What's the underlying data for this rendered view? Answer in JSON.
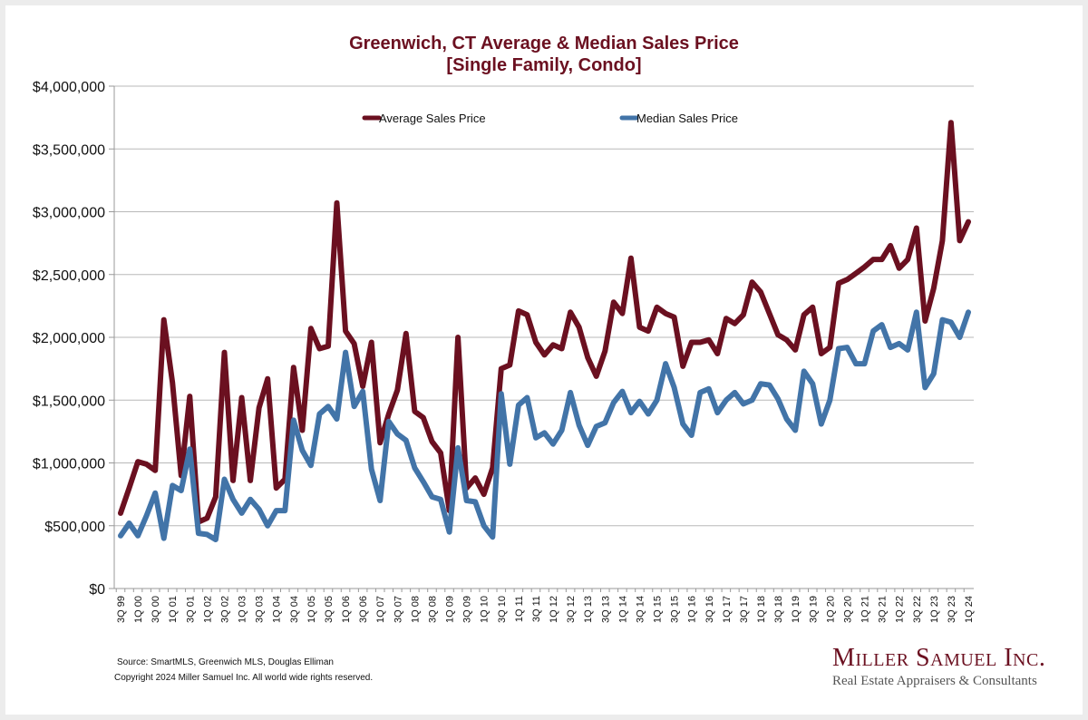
{
  "chart_data": {
    "type": "line",
    "title": "Greenwich, CT Average & Median Sales Price",
    "subtitle": "[Single Family, Condo]",
    "xlabel": "",
    "ylabel": "",
    "ylim": [
      0,
      4000000
    ],
    "yticks": [
      0,
      500000,
      1000000,
      1500000,
      2000000,
      2500000,
      3000000,
      3500000,
      4000000
    ],
    "ytick_labels": [
      "$0",
      "$500,000",
      "$1,000,000",
      "$1,500,000",
      "$2,000,000",
      "$2,500,000",
      "$3,000,000",
      "$3,500,000",
      "$4,000,000"
    ],
    "grid": true,
    "legend_position": "top",
    "x": [
      "3Q 99",
      "4Q 99",
      "1Q 00",
      "2Q 00",
      "3Q 00",
      "4Q 00",
      "1Q 01",
      "2Q 01",
      "3Q 01",
      "4Q 01",
      "1Q 02",
      "2Q 02",
      "3Q 02",
      "4Q 02",
      "1Q 03",
      "2Q 03",
      "3Q 03",
      "4Q 03",
      "1Q 04",
      "2Q 04",
      "3Q 04",
      "4Q 04",
      "1Q 05",
      "2Q 05",
      "3Q 05",
      "4Q 05",
      "1Q 06",
      "2Q 06",
      "3Q 06",
      "4Q 06",
      "1Q 07",
      "2Q 07",
      "3Q 07",
      "4Q 07",
      "1Q 08",
      "2Q 08",
      "3Q 08",
      "4Q 08",
      "1Q 09",
      "2Q 09",
      "3Q 09",
      "4Q 09",
      "1Q 10",
      "2Q 10",
      "3Q 10",
      "4Q 10",
      "1Q 11",
      "2Q 11",
      "3Q 11",
      "4Q 11",
      "1Q 12",
      "2Q 12",
      "3Q 12",
      "4Q 12",
      "1Q 13",
      "2Q 13",
      "3Q 13",
      "4Q 13",
      "1Q 14",
      "2Q 14",
      "3Q 14",
      "4Q 14",
      "1Q 15",
      "2Q 15",
      "3Q 15",
      "4Q 15",
      "1Q 16",
      "2Q 16",
      "3Q 16",
      "4Q 16",
      "1Q 17",
      "2Q 17",
      "3Q 17",
      "4Q 17",
      "1Q 18",
      "2Q 18",
      "3Q 18",
      "4Q 18",
      "1Q 19",
      "2Q 19",
      "3Q 19",
      "4Q 19",
      "1Q 20",
      "2Q 20",
      "3Q 20",
      "4Q 20",
      "1Q 21",
      "2Q 21",
      "3Q 21",
      "4Q 21",
      "1Q 22",
      "2Q 22",
      "3Q 22",
      "4Q 22",
      "1Q 23",
      "2Q 23",
      "3Q 23",
      "4Q 23",
      "1Q 24"
    ],
    "x_tick_every": 2,
    "series": [
      {
        "name": "Average Sales Price",
        "color": "#6b1020",
        "values": [
          600000,
          800000,
          1010000,
          990000,
          940000,
          2140000,
          1640000,
          900000,
          1530000,
          530000,
          560000,
          730000,
          1880000,
          860000,
          1520000,
          860000,
          1440000,
          1670000,
          800000,
          870000,
          1760000,
          1260000,
          2070000,
          1910000,
          1930000,
          3070000,
          2050000,
          1950000,
          1610000,
          1960000,
          1160000,
          1390000,
          1580000,
          2030000,
          1410000,
          1360000,
          1170000,
          1080000,
          620000,
          2000000,
          800000,
          880000,
          750000,
          960000,
          1750000,
          1780000,
          2210000,
          2180000,
          1960000,
          1860000,
          1940000,
          1910000,
          2200000,
          2080000,
          1840000,
          1690000,
          1890000,
          2280000,
          2190000,
          2630000,
          2080000,
          2050000,
          2240000,
          2190000,
          2160000,
          1770000,
          1960000,
          1960000,
          1980000,
          1870000,
          2150000,
          2110000,
          2180000,
          2440000,
          2360000,
          2190000,
          2020000,
          1980000,
          1900000,
          2180000,
          2240000,
          1870000,
          1920000,
          2430000,
          2460000,
          2510000,
          2560000,
          2620000,
          2620000,
          2730000,
          2550000,
          2620000,
          2870000,
          2130000,
          2390000,
          2770000,
          3710000,
          2770000,
          2920000
        ]
      },
      {
        "name": "Median Sales Price",
        "color": "#4274a8",
        "values": [
          420000,
          520000,
          420000,
          580000,
          760000,
          400000,
          820000,
          780000,
          1110000,
          440000,
          430000,
          390000,
          870000,
          710000,
          600000,
          710000,
          630000,
          500000,
          620000,
          620000,
          1340000,
          1100000,
          980000,
          1390000,
          1450000,
          1350000,
          1880000,
          1450000,
          1570000,
          950000,
          700000,
          1330000,
          1230000,
          1180000,
          960000,
          850000,
          730000,
          710000,
          450000,
          1120000,
          700000,
          690000,
          500000,
          410000,
          1550000,
          990000,
          1460000,
          1520000,
          1200000,
          1240000,
          1150000,
          1260000,
          1560000,
          1300000,
          1140000,
          1290000,
          1320000,
          1480000,
          1570000,
          1400000,
          1490000,
          1390000,
          1500000,
          1790000,
          1600000,
          1310000,
          1220000,
          1560000,
          1590000,
          1400000,
          1500000,
          1560000,
          1470000,
          1500000,
          1630000,
          1620000,
          1510000,
          1350000,
          1260000,
          1730000,
          1630000,
          1310000,
          1500000,
          1910000,
          1920000,
          1790000,
          1790000,
          2050000,
          2100000,
          1920000,
          1950000,
          1900000,
          2200000,
          1600000,
          1710000,
          2140000,
          2120000,
          2000000,
          2200000
        ]
      }
    ]
  },
  "footer": {
    "source": "Source: SmartMLS, Greenwich MLS, Douglas Elliman",
    "copyright": "Copyright 2024 Miller Samuel Inc.  All world wide rights reserved."
  },
  "logo": {
    "name": "Miller Samuel Inc.",
    "tagline": "Real Estate Appraisers & Consultants"
  }
}
